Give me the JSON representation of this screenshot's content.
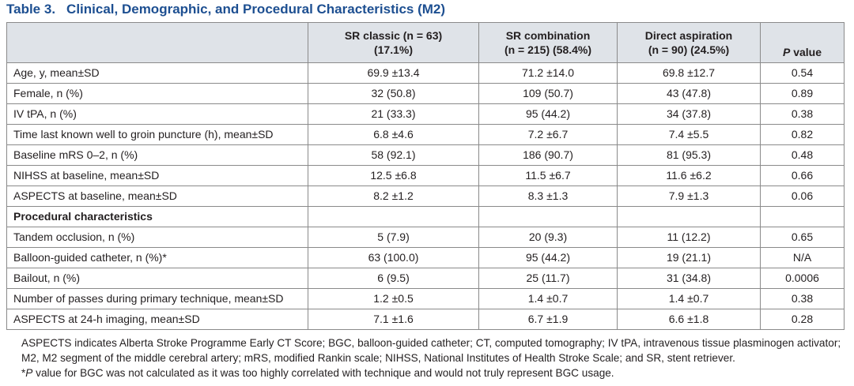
{
  "caption": {
    "label": "Table 3.",
    "title": "Clinical, Demographic, and Procedural Characteristics (M2)"
  },
  "table": {
    "headers": [
      {
        "line1": "",
        "line2": ""
      },
      {
        "line1": "SR classic (n = 63)",
        "line2": "(17.1%)"
      },
      {
        "line1": "SR combination",
        "line2": "(n = 215) (58.4%)"
      },
      {
        "line1": "Direct aspiration",
        "line2": "(n = 90) (24.5%)"
      },
      {
        "line1": "P",
        "line2": " value"
      }
    ],
    "rows": [
      {
        "cells": [
          "Age, y, mean±SD",
          "69.9 ±13.4",
          "71.2 ±14.0",
          "69.8 ±12.7",
          "0.54"
        ]
      },
      {
        "cells": [
          "Female, n (%)",
          "32 (50.8)",
          "109 (50.7)",
          "43 (47.8)",
          "0.89"
        ]
      },
      {
        "cells": [
          "IV tPA, n (%)",
          "21 (33.3)",
          "95 (44.2)",
          "34 (37.8)",
          "0.38"
        ]
      },
      {
        "cells": [
          "Time last known well to groin puncture (h), mean±SD",
          "6.8 ±4.6",
          "7.2 ±6.7",
          "7.4 ±5.5",
          "0.82"
        ]
      },
      {
        "cells": [
          "Baseline mRS 0–2, n (%)",
          "58 (92.1)",
          "186 (90.7)",
          "81 (95.3)",
          "0.48"
        ]
      },
      {
        "cells": [
          "NIHSS at baseline, mean±SD",
          "12.5 ±6.8",
          "11.5 ±6.7",
          "11.6 ±6.2",
          "0.66"
        ]
      },
      {
        "cells": [
          "ASPECTS at baseline, mean±SD",
          "8.2 ±1.2",
          "8.3 ±1.3",
          "7.9 ±1.3",
          "0.06"
        ]
      },
      {
        "cells": [
          "Procedural characteristics",
          "",
          "",
          "",
          ""
        ],
        "section": true
      },
      {
        "cells": [
          "Tandem occlusion, n (%)",
          "5 (7.9)",
          "20 (9.3)",
          "11 (12.2)",
          "0.65"
        ]
      },
      {
        "cells": [
          "Balloon-guided catheter, n (%)*",
          "63 (100.0)",
          "95 (44.2)",
          "19 (21.1)",
          "N/A"
        ]
      },
      {
        "cells": [
          "Bailout, n (%)",
          "6 (9.5)",
          "25 (11.7)",
          "31 (34.8)",
          "0.0006"
        ]
      },
      {
        "cells": [
          "Number of passes during primary technique, mean±SD",
          "1.2 ±0.5",
          "1.4 ±0.7",
          "1.4 ±0.7",
          "0.38"
        ]
      },
      {
        "cells": [
          "ASPECTS at 24-h imaging, mean±SD",
          "7.1 ±1.6",
          "6.7 ±1.9",
          "6.6 ±1.8",
          "0.28"
        ]
      }
    ]
  },
  "notes": {
    "abbreviations": "ASPECTS indicates Alberta Stroke Programme Early CT Score; BGC, balloon-guided catheter; CT, computed tomography; IV tPA, intravenous tissue plasminogen activator; M2, M2 segment of the middle cerebral artery; mRS, modified Rankin scale; NIHSS, National Institutes of Health Stroke Scale; and SR, stent retriever.",
    "footnote_mark": "*",
    "footnote_p": "P",
    "footnote_rest": " value for BGC was not calculated as it was too highly correlated with technique and would not truly represent BGC usage."
  }
}
